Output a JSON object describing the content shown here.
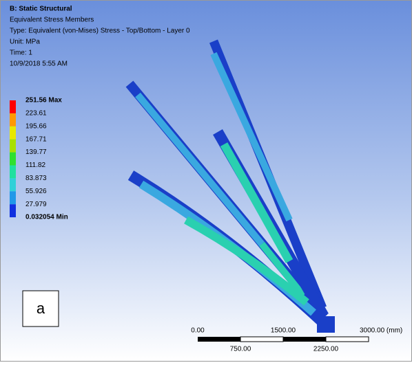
{
  "header": {
    "title": "B: Static Structural",
    "lines": [
      "Equivalent Stress Members",
      "Type: Equivalent (von-Mises) Stress - Top/Bottom - Layer 0",
      "Unit: MPa",
      "Time: 1",
      "10/9/2018 5:55 AM"
    ]
  },
  "legend": {
    "labels": [
      "251.56 Max",
      "223.61",
      "195.66",
      "167.71",
      "139.77",
      "111.82",
      "83.873",
      "55.926",
      "27.979",
      "0.032054 Min"
    ]
  },
  "scale_bar": {
    "top_labels": [
      "0.00",
      "1500.00",
      "3000.00 (mm)"
    ],
    "bottom_labels": [
      "750.00",
      "2250.00"
    ]
  },
  "panel_label": "a"
}
